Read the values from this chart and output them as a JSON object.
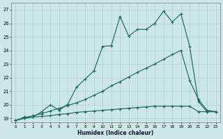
{
  "xlabel": "Humidex (Indice chaleur)",
  "background_color": "#cde8e4",
  "grid_color": "#b0cfcb",
  "line_color": "#1a6b5a",
  "xlim_min": -0.5,
  "xlim_max": 23.5,
  "ylim_min": 18.7,
  "ylim_max": 27.5,
  "xtick_vals": [
    0,
    1,
    2,
    3,
    4,
    5,
    6,
    7,
    8,
    9,
    10,
    11,
    12,
    13,
    14,
    15,
    16,
    17,
    18,
    19,
    20,
    21,
    22,
    23
  ],
  "ytick_vals": [
    19,
    20,
    21,
    22,
    23,
    24,
    25,
    26,
    27
  ],
  "line1_x": [
    0,
    1,
    2,
    3,
    4,
    5,
    6,
    7,
    8,
    9,
    10,
    11,
    12,
    13,
    14,
    15,
    16,
    17,
    18,
    19,
    20,
    21,
    22,
    23
  ],
  "line1_y": [
    18.85,
    19.1,
    19.1,
    19.5,
    20.0,
    19.6,
    20.05,
    21.3,
    21.9,
    22.5,
    24.3,
    24.35,
    26.5,
    25.05,
    25.55,
    25.55,
    26.0,
    26.9,
    26.1,
    26.7,
    24.3,
    20.25,
    19.5,
    19.5
  ],
  "line2_x": [
    0,
    1,
    2,
    3,
    4,
    5,
    6,
    7,
    8,
    9,
    10,
    11,
    12,
    13,
    14,
    15,
    16,
    17,
    18,
    19,
    20,
    21,
    22,
    23
  ],
  "line2_y": [
    18.85,
    19.05,
    19.2,
    19.35,
    19.55,
    19.75,
    19.95,
    20.15,
    20.4,
    20.7,
    21.0,
    21.4,
    21.7,
    22.05,
    22.4,
    22.7,
    23.0,
    23.35,
    23.7,
    24.0,
    21.8,
    20.4,
    19.6,
    19.5
  ],
  "line3_x": [
    0,
    1,
    2,
    3,
    4,
    5,
    6,
    7,
    8,
    9,
    10,
    11,
    12,
    13,
    14,
    15,
    16,
    17,
    18,
    19,
    20,
    21,
    22,
    23
  ],
  "line3_y": [
    18.85,
    19.0,
    19.1,
    19.15,
    19.2,
    19.3,
    19.35,
    19.45,
    19.5,
    19.55,
    19.6,
    19.65,
    19.7,
    19.75,
    19.8,
    19.85,
    19.9,
    19.9,
    19.9,
    19.9,
    19.9,
    19.5,
    19.5,
    19.5
  ]
}
